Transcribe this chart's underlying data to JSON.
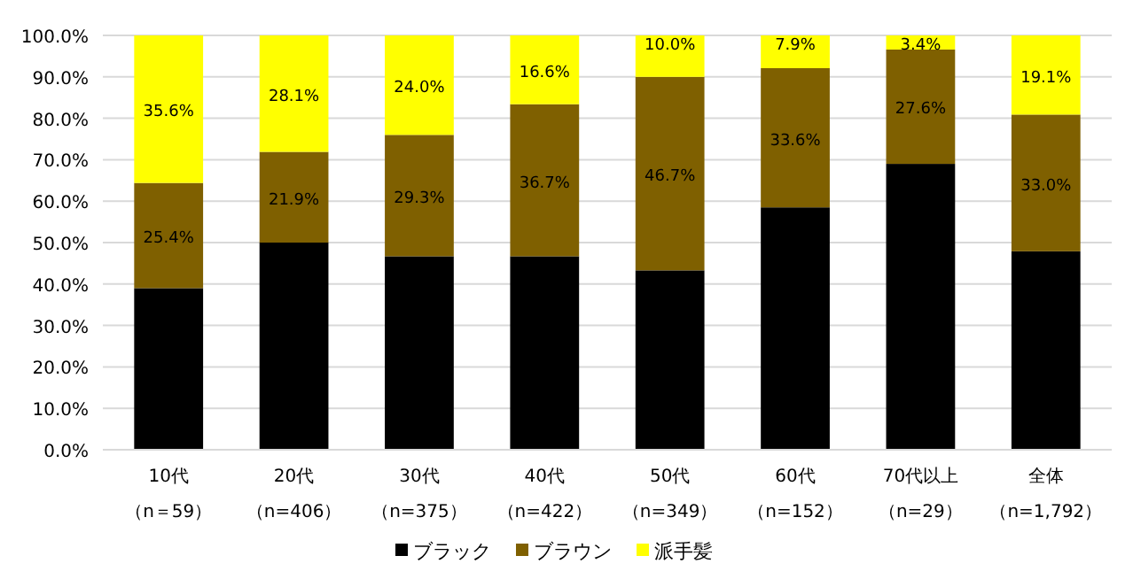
{
  "chart_data": {
    "type": "bar",
    "stacked": true,
    "categories": [
      "10代（n＝59）",
      "20代（n=406）",
      "30代（n=375）",
      "40代（n=422）",
      "50代（n=349）",
      "60代（n=152）",
      "70代以上（n=29）",
      "全体（n=1,792）"
    ],
    "series": [
      {
        "name": "ブラック",
        "color": "#000000",
        "values": [
          39.0,
          50.0,
          46.7,
          46.7,
          43.3,
          58.5,
          69.0,
          47.9
        ]
      },
      {
        "name": "ブラウン",
        "color": "#7f6000",
        "values": [
          25.4,
          21.9,
          29.3,
          36.7,
          46.7,
          33.6,
          27.6,
          33.0
        ],
        "value_labels": [
          "25.4%",
          "21.9%",
          "29.3%",
          "36.7%",
          "46.7%",
          "33.6%",
          "27.6%",
          "33.0%"
        ]
      },
      {
        "name": "派手髪",
        "color": "#ffff00",
        "values": [
          35.6,
          28.1,
          24.0,
          16.6,
          10.0,
          7.9,
          3.4,
          19.1
        ],
        "value_labels": [
          "35.6%",
          "28.1%",
          "24.0%",
          "16.6%",
          "10.0%",
          "7.9%",
          "3.4%",
          "19.1%"
        ]
      }
    ],
    "ylim": [
      0,
      100
    ],
    "yticks": [
      {
        "value": 0,
        "label": "0.0%"
      },
      {
        "value": 10,
        "label": "10.0%"
      },
      {
        "value": 20,
        "label": "20.0%"
      },
      {
        "value": 30,
        "label": "30.0%"
      },
      {
        "value": 40,
        "label": "40.0%"
      },
      {
        "value": 50,
        "label": "50.0%"
      },
      {
        "value": 60,
        "label": "60.0%"
      },
      {
        "value": 70,
        "label": "70.0%"
      },
      {
        "value": 80,
        "label": "80.0%"
      },
      {
        "value": 90,
        "label": "90.0%"
      },
      {
        "value": 100,
        "label": "100.0%"
      }
    ],
    "grid": "y",
    "legend": "bottom"
  }
}
